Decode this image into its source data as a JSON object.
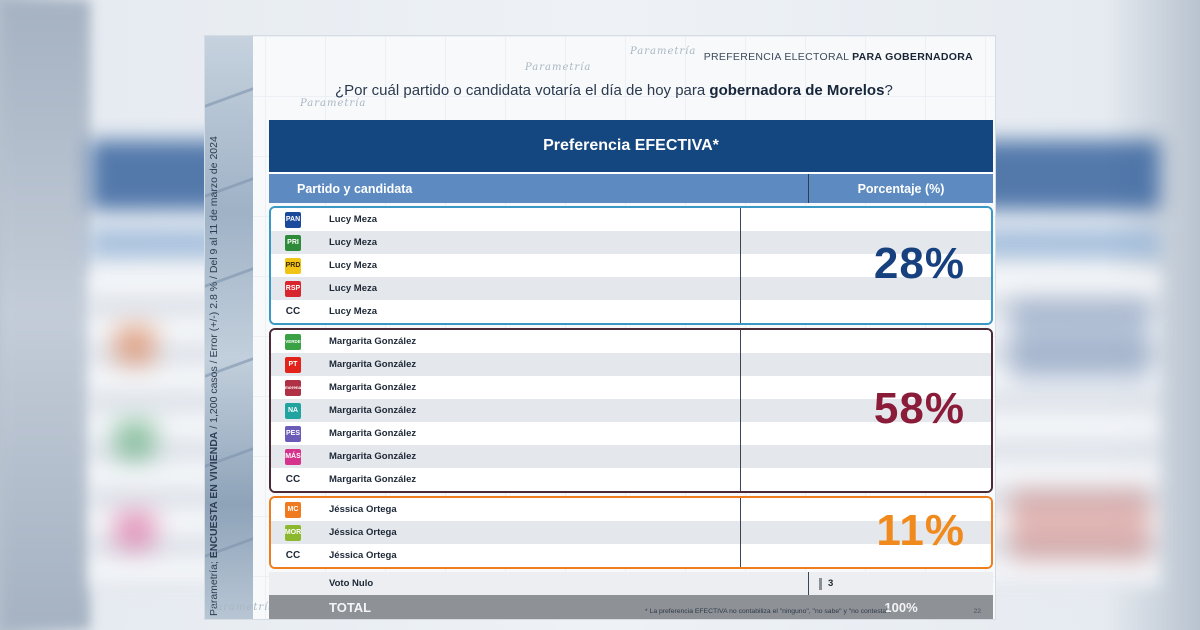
{
  "header": {
    "label_plain": "PREFERENCIA ELECTORAL ",
    "label_bold": "PARA GOBERNADORA"
  },
  "watermark": "Parametría",
  "side_note": {
    "prefix": "Parametría; ",
    "bold": "ENCUESTA EN VIVIENDA",
    "rest": " / 1,200 casos / Error (+/-) 2.8 % / Del 9 al 11 de marzo de 2024"
  },
  "question": {
    "before": "¿Por cuál partido o candidata votaría el día de hoy para ",
    "bold": "gobernadora de Morelos",
    "after": "?"
  },
  "table": {
    "title": "Preferencia EFECTIVA*",
    "col_party": "Partido y candidata",
    "col_pct": "Porcentaje (%)",
    "groups": [
      {
        "percentage": "28%",
        "color": "#17407f",
        "rows": [
          {
            "logo": "PAN",
            "logo_color": "#1b4a9c",
            "name": "Lucy Meza"
          },
          {
            "logo": "PRI",
            "logo_color": "#2e8b3a",
            "name": "Lucy Meza"
          },
          {
            "logo": "PRD",
            "logo_color": "#f2c416",
            "name": "Lucy Meza"
          },
          {
            "logo": "RSP",
            "logo_color": "#d8262f",
            "name": "Lucy Meza"
          },
          {
            "logo": "CC",
            "logo_color": "transparent",
            "name": "Lucy Meza"
          }
        ]
      },
      {
        "percentage": "58%",
        "color": "#8a1c3a",
        "rows": [
          {
            "logo": "VERDE",
            "logo_color": "#3aa245",
            "name": "Margarita González"
          },
          {
            "logo": "PT",
            "logo_color": "#e2231a",
            "name": "Margarita González"
          },
          {
            "logo": "morena",
            "logo_color": "#b03045",
            "name": "Margarita González"
          },
          {
            "logo": "NA",
            "logo_color": "#21a3a0",
            "name": "Margarita González"
          },
          {
            "logo": "PES",
            "logo_color": "#6b5bb8",
            "name": "Margarita González"
          },
          {
            "logo": "MÁS",
            "logo_color": "#d6338c",
            "name": "Margarita González"
          },
          {
            "logo": "CC",
            "logo_color": "transparent",
            "name": "Margarita González"
          }
        ]
      },
      {
        "percentage": "11%",
        "color": "#f08a1c",
        "rows": [
          {
            "logo": "MC",
            "logo_color": "#f07a1f",
            "name": "Jéssica Ortega"
          },
          {
            "logo": "MOR",
            "logo_color": "#8bb82d",
            "name": "Jéssica Ortega"
          },
          {
            "logo": "CC",
            "logo_color": "transparent",
            "name": "Jéssica Ortega"
          }
        ]
      }
    ],
    "voto_nulo": {
      "label": "Voto Nulo",
      "value": "3"
    },
    "total": {
      "label": "TOTAL",
      "value": "100%"
    }
  },
  "footnote": "* La preferencia EFECTIVA no contabiliza el \"ninguno\", \"no sabe\" y \"no contesta\".",
  "page_number": "22"
}
